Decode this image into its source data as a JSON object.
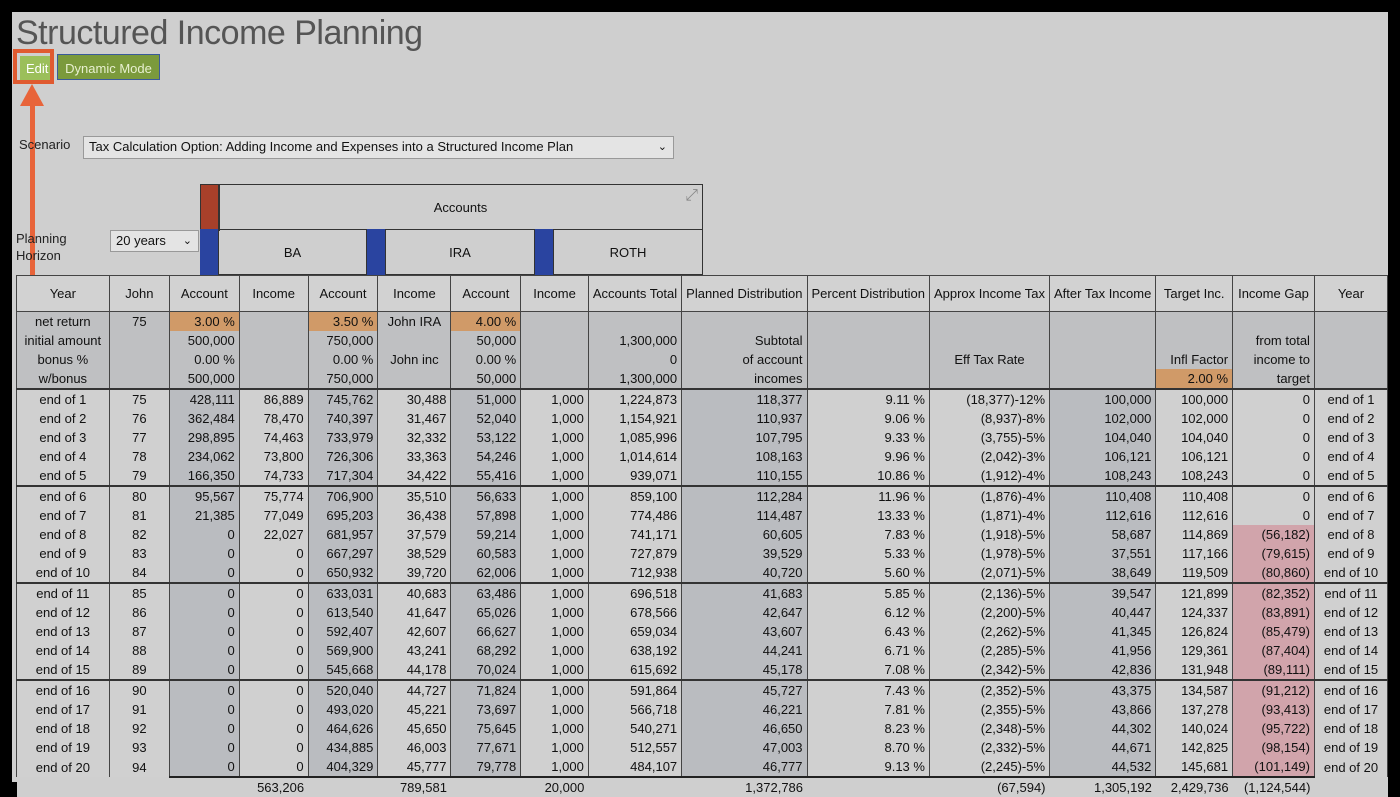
{
  "title": "Structured Income Planning",
  "buttons": {
    "edit": "Edit",
    "dynamic_mode": "Dynamic Mode"
  },
  "scenario": {
    "label": "Scenario",
    "value": "Tax Calculation Option: Adding Income and Expenses into a Structured Income Plan"
  },
  "planning_horizon": {
    "label": "Planning Horizon",
    "value": "20 years"
  },
  "accounts_group": "Accounts",
  "accounts": [
    "BA",
    "IRA",
    "ROTH"
  ],
  "colors": {
    "accent_edit": "#9bbf5a",
    "accent_dynamic": "#7b9a3c",
    "highlight": "#e05a30",
    "group_red": "#a8402a",
    "account_blue": "#2a44a0",
    "input_orange": "#d09a68",
    "negative_gap": "#d1a4ab"
  },
  "headers": [
    "Year",
    "John",
    "Account",
    "Income",
    "Account",
    "Income",
    "Account",
    "Income",
    "Accounts Total",
    "Planned Distribution",
    "Percent Distribution",
    "Approx Income Tax",
    "After Tax Income",
    "Target Inc.",
    "Income Gap",
    "Year"
  ],
  "params": {
    "row_labels": [
      "net return",
      "initial amount",
      "bonus %",
      "w/bonus"
    ],
    "john": "75",
    "ba_account": [
      "3.00  %",
      "500,000",
      "0.00  %",
      "500,000"
    ],
    "ira_account": [
      "3.50  %",
      "750,000",
      "0.00  %",
      "750,000"
    ],
    "ira_income": [
      "John IRA",
      "",
      "John inc",
      ""
    ],
    "roth_account": [
      "4.00  %",
      "50,000",
      "0.00  %",
      "50,000"
    ],
    "accounts_total": [
      "",
      "1,300,000",
      "0",
      "1,300,000"
    ],
    "planned_distribution": [
      "",
      "Subtotal",
      "of account",
      "incomes"
    ],
    "approx_tax": [
      "",
      "",
      "Eff Tax Rate",
      ""
    ],
    "target": [
      "",
      "",
      "Infl Factor",
      "2.00  %"
    ],
    "gap": [
      "",
      "from total",
      "income to",
      "target"
    ]
  },
  "rows": [
    [
      "end of 1",
      "75",
      "428,111",
      "86,889",
      "745,762",
      "30,488",
      "51,000",
      "1,000",
      "1,224,873",
      "118,377",
      "9.11  %",
      "(18,377)-12%",
      "100,000",
      "100,000",
      "0",
      "end of 1"
    ],
    [
      "end of 2",
      "76",
      "362,484",
      "78,470",
      "740,397",
      "31,467",
      "52,040",
      "1,000",
      "1,154,921",
      "110,937",
      "9.06  %",
      "(8,937)-8%",
      "102,000",
      "102,000",
      "0",
      "end of 2"
    ],
    [
      "end of 3",
      "77",
      "298,895",
      "74,463",
      "733,979",
      "32,332",
      "53,122",
      "1,000",
      "1,085,996",
      "107,795",
      "9.33  %",
      "(3,755)-5%",
      "104,040",
      "104,040",
      "0",
      "end of 3"
    ],
    [
      "end of 4",
      "78",
      "234,062",
      "73,800",
      "726,306",
      "33,363",
      "54,246",
      "1,000",
      "1,014,614",
      "108,163",
      "9.96  %",
      "(2,042)-3%",
      "106,121",
      "106,121",
      "0",
      "end of 4"
    ],
    [
      "end of 5",
      "79",
      "166,350",
      "74,733",
      "717,304",
      "34,422",
      "55,416",
      "1,000",
      "939,071",
      "110,155",
      "10.86  %",
      "(1,912)-4%",
      "108,243",
      "108,243",
      "0",
      "end of 5"
    ],
    [
      "end of 6",
      "80",
      "95,567",
      "75,774",
      "706,900",
      "35,510",
      "56,633",
      "1,000",
      "859,100",
      "112,284",
      "11.96  %",
      "(1,876)-4%",
      "110,408",
      "110,408",
      "0",
      "end of 6"
    ],
    [
      "end of 7",
      "81",
      "21,385",
      "77,049",
      "695,203",
      "36,438",
      "57,898",
      "1,000",
      "774,486",
      "114,487",
      "13.33  %",
      "(1,871)-4%",
      "112,616",
      "112,616",
      "0",
      "end of 7"
    ],
    [
      "end of 8",
      "82",
      "0",
      "22,027",
      "681,957",
      "37,579",
      "59,214",
      "1,000",
      "741,171",
      "60,605",
      "7.83  %",
      "(1,918)-5%",
      "58,687",
      "114,869",
      "(56,182)",
      "end of 8"
    ],
    [
      "end of 9",
      "83",
      "0",
      "0",
      "667,297",
      "38,529",
      "60,583",
      "1,000",
      "727,879",
      "39,529",
      "5.33  %",
      "(1,978)-5%",
      "37,551",
      "117,166",
      "(79,615)",
      "end of 9"
    ],
    [
      "end of 10",
      "84",
      "0",
      "0",
      "650,932",
      "39,720",
      "62,006",
      "1,000",
      "712,938",
      "40,720",
      "5.60  %",
      "(2,071)-5%",
      "38,649",
      "119,509",
      "(80,860)",
      "end of 10"
    ],
    [
      "end of 11",
      "85",
      "0",
      "0",
      "633,031",
      "40,683",
      "63,486",
      "1,000",
      "696,518",
      "41,683",
      "5.85  %",
      "(2,136)-5%",
      "39,547",
      "121,899",
      "(82,352)",
      "end of 11"
    ],
    [
      "end of 12",
      "86",
      "0",
      "0",
      "613,540",
      "41,647",
      "65,026",
      "1,000",
      "678,566",
      "42,647",
      "6.12  %",
      "(2,200)-5%",
      "40,447",
      "124,337",
      "(83,891)",
      "end of 12"
    ],
    [
      "end of 13",
      "87",
      "0",
      "0",
      "592,407",
      "42,607",
      "66,627",
      "1,000",
      "659,034",
      "43,607",
      "6.43  %",
      "(2,262)-5%",
      "41,345",
      "126,824",
      "(85,479)",
      "end of 13"
    ],
    [
      "end of 14",
      "88",
      "0",
      "0",
      "569,900",
      "43,241",
      "68,292",
      "1,000",
      "638,192",
      "44,241",
      "6.71  %",
      "(2,285)-5%",
      "41,956",
      "129,361",
      "(87,404)",
      "end of 14"
    ],
    [
      "end of 15",
      "89",
      "0",
      "0",
      "545,668",
      "44,178",
      "70,024",
      "1,000",
      "615,692",
      "45,178",
      "7.08  %",
      "(2,342)-5%",
      "42,836",
      "131,948",
      "(89,111)",
      "end of 15"
    ],
    [
      "end of 16",
      "90",
      "0",
      "0",
      "520,040",
      "44,727",
      "71,824",
      "1,000",
      "591,864",
      "45,727",
      "7.43  %",
      "(2,352)-5%",
      "43,375",
      "134,587",
      "(91,212)",
      "end of 16"
    ],
    [
      "end of 17",
      "91",
      "0",
      "0",
      "493,020",
      "45,221",
      "73,697",
      "1,000",
      "566,718",
      "46,221",
      "7.81  %",
      "(2,355)-5%",
      "43,866",
      "137,278",
      "(93,413)",
      "end of 17"
    ],
    [
      "end of 18",
      "92",
      "0",
      "0",
      "464,626",
      "45,650",
      "75,645",
      "1,000",
      "540,271",
      "46,650",
      "8.23  %",
      "(2,348)-5%",
      "44,302",
      "140,024",
      "(95,722)",
      "end of 18"
    ],
    [
      "end of 19",
      "93",
      "0",
      "0",
      "434,885",
      "46,003",
      "77,671",
      "1,000",
      "512,557",
      "47,003",
      "8.70  %",
      "(2,332)-5%",
      "44,671",
      "142,825",
      "(98,154)",
      "end of 19"
    ],
    [
      "end of 20",
      "94",
      "0",
      "0",
      "404,329",
      "45,777",
      "79,778",
      "1,000",
      "484,107",
      "46,777",
      "9.13  %",
      "(2,245)-5%",
      "44,532",
      "145,681",
      "(101,149)",
      "end of 20"
    ]
  ],
  "totals": [
    "",
    "",
    "",
    "563,206",
    "",
    "789,581",
    "",
    "20,000",
    "",
    "1,372,786",
    "",
    "(67,594)",
    "1,305,192",
    "2,429,736",
    "(1,124,544)",
    ""
  ]
}
